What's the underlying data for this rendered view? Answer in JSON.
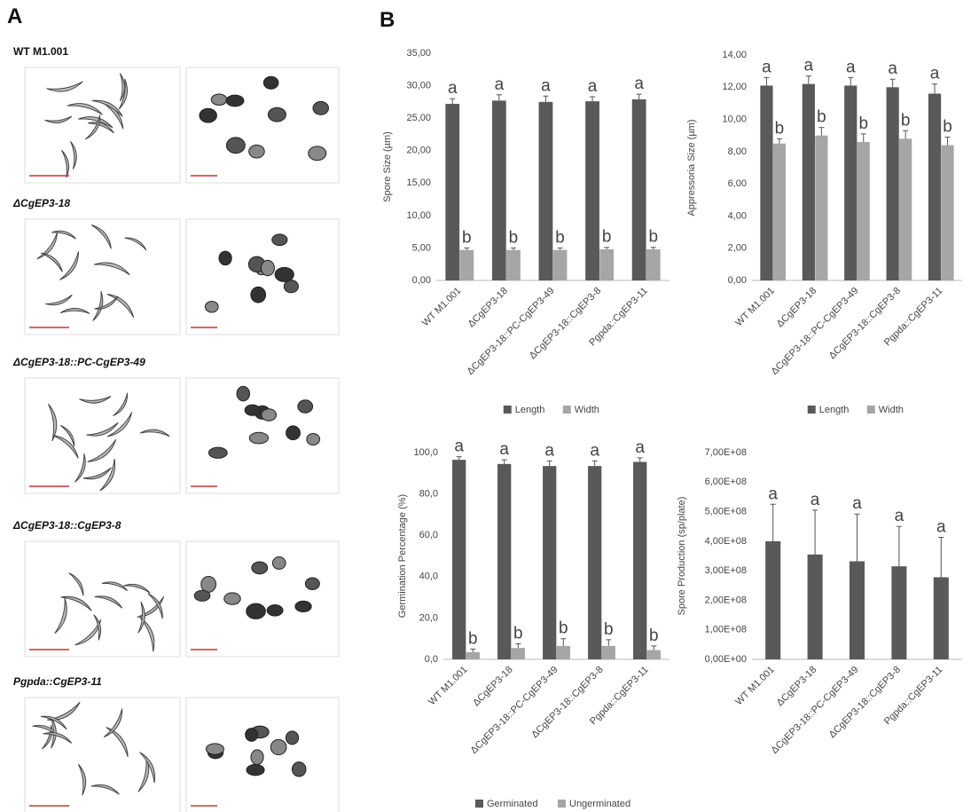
{
  "figure": {
    "panel_a": "A",
    "panel_b": "B",
    "strains": [
      "WT M1.001",
      "ΔCgEP3-18",
      "ΔCgEP3-18::PC-CgEP3-49",
      "ΔCgEP3-18::CgEP3-8",
      "Pgpda::CgEP3-11"
    ]
  },
  "chart_data": [
    {
      "type": "bar",
      "y_label": "Spore Size (µm)",
      "categories": [
        "WT M1.001",
        "ΔCgEP3-18",
        "ΔCgEP3-18::PC-CgEP3-49",
        "ΔCgEP3-18::CgEP3-8",
        "Pgpda::CgEP3-11"
      ],
      "ylim": [
        0,
        35
      ],
      "yticks": [
        {
          "value": 0,
          "label": "0,00"
        },
        {
          "value": 5,
          "label": "5,00"
        },
        {
          "value": 10,
          "label": "10,00"
        },
        {
          "value": 15,
          "label": "15,00"
        },
        {
          "value": 20,
          "label": "20,00"
        },
        {
          "value": 25,
          "label": "25,00"
        },
        {
          "value": 30,
          "label": "30,00"
        },
        {
          "value": 35,
          "label": "35,00"
        }
      ],
      "legend": "bottom",
      "series": [
        {
          "name": "Length",
          "color": "#595959",
          "values": [
            27.2,
            27.7,
            27.5,
            27.6,
            27.9
          ],
          "errors": [
            0.8,
            0.9,
            0.9,
            0.7,
            0.8
          ],
          "annotations": [
            "a",
            "a",
            "a",
            "a",
            "a"
          ]
        },
        {
          "name": "Width",
          "color": "#a6a6a6",
          "values": [
            4.7,
            4.7,
            4.7,
            4.8,
            4.8
          ],
          "errors": [
            0.3,
            0.3,
            0.3,
            0.3,
            0.3
          ],
          "annotations": [
            "b",
            "b",
            "b",
            "b",
            "b"
          ]
        }
      ]
    },
    {
      "type": "bar",
      "y_label": "Appressoria Size (µm)",
      "categories": [
        "WT M1.001",
        "ΔCgEP3-18",
        "ΔCgEP3-18::PC-CgEP3-49",
        "ΔCgEP3-18::CgEP3-8",
        "Pgpda::CgEP3-11"
      ],
      "ylim": [
        0,
        14
      ],
      "yticks": [
        {
          "value": 0,
          "label": "0,00"
        },
        {
          "value": 2,
          "label": "2,00"
        },
        {
          "value": 4,
          "label": "4,00"
        },
        {
          "value": 6,
          "label": "6,00"
        },
        {
          "value": 8,
          "label": "8,00"
        },
        {
          "value": 10,
          "label": "10,00"
        },
        {
          "value": 12,
          "label": "12,00"
        },
        {
          "value": 14,
          "label": "14,00"
        }
      ],
      "legend": "bottom",
      "series": [
        {
          "name": "Length",
          "color": "#595959",
          "values": [
            12.1,
            12.2,
            12.1,
            12.0,
            11.6
          ],
          "errors": [
            0.5,
            0.5,
            0.5,
            0.5,
            0.6
          ],
          "annotations": [
            "a",
            "a",
            "a",
            "a",
            "a"
          ]
        },
        {
          "name": "Width",
          "color": "#a6a6a6",
          "values": [
            8.5,
            9.0,
            8.6,
            8.8,
            8.4
          ],
          "errors": [
            0.3,
            0.5,
            0.5,
            0.5,
            0.5
          ],
          "annotations": [
            "b",
            "b",
            "b",
            "b",
            "b"
          ]
        }
      ]
    },
    {
      "type": "bar",
      "y_label": "Germination Percentage (%)",
      "categories": [
        "WT M1.001",
        "ΔCgEP3-18",
        "ΔCgEP3-18::PC-CgEP3-49",
        "ΔCgEP3-18::CgEP3-8",
        "Pgpda::CgEP3-11"
      ],
      "ylim": [
        0,
        100
      ],
      "yticks": [
        {
          "value": 0,
          "label": "0,0"
        },
        {
          "value": 20,
          "label": "20,0"
        },
        {
          "value": 40,
          "label": "40,0"
        },
        {
          "value": 60,
          "label": "60,0"
        },
        {
          "value": 80,
          "label": "80,0"
        },
        {
          "value": 100,
          "label": "100,0"
        }
      ],
      "legend": "bottom",
      "series": [
        {
          "name": "Germinated",
          "color": "#595959",
          "values": [
            96.5,
            94.5,
            93.5,
            93.5,
            95.5
          ],
          "errors": [
            1.5,
            2,
            2.5,
            2.5,
            2
          ],
          "annotations": [
            "a",
            "a",
            "a",
            "a",
            "a"
          ]
        },
        {
          "name": "Ungerminated",
          "color": "#a6a6a6",
          "values": [
            3.5,
            5.5,
            6.5,
            6.5,
            4.5
          ],
          "errors": [
            1.5,
            2,
            3.5,
            3,
            2
          ],
          "annotations": [
            "b",
            "b",
            "b",
            "b",
            "b"
          ]
        }
      ]
    },
    {
      "type": "bar",
      "y_label": "Spore Production  (sp/plate)",
      "categories": [
        "WT M1.001",
        "ΔCgEP3-18",
        "ΔCgEP3-18::PC-CgEP3-49",
        "ΔCgEP3-18::CgEP3-8",
        "Pgpda::CgEP3-11"
      ],
      "ylim": [
        0,
        700000000
      ],
      "yticks": [
        {
          "value": 0,
          "label": "0,00E+00"
        },
        {
          "value": 100000000,
          "label": "1,00E+08"
        },
        {
          "value": 200000000,
          "label": "2,00E+08"
        },
        {
          "value": 300000000,
          "label": "3,00E+08"
        },
        {
          "value": 400000000,
          "label": "4,00E+08"
        },
        {
          "value": 500000000,
          "label": "5,00E+08"
        },
        {
          "value": 600000000,
          "label": "6,00E+08"
        },
        {
          "value": 700000000,
          "label": "7,00E+08"
        }
      ],
      "series": [
        {
          "color": "#595959",
          "values": [
            400000000,
            355000000,
            332000000,
            315000000,
            278000000
          ],
          "errors": [
            125000000,
            150000000,
            160000000,
            135000000,
            135000000
          ],
          "annotations": [
            "a",
            "a",
            "a",
            "a",
            "a"
          ]
        }
      ]
    }
  ]
}
